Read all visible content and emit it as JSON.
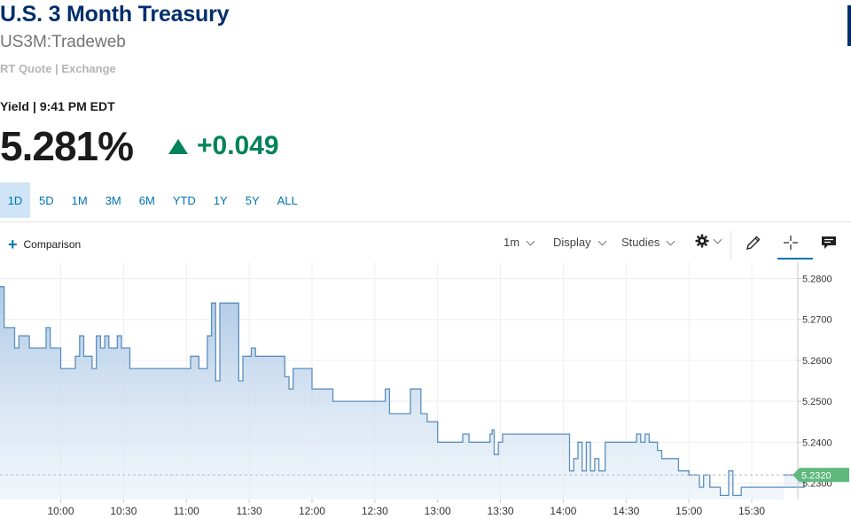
{
  "header": {
    "title": "U.S. 3 Month Treasury",
    "symbol": "US3M:Tradeweb",
    "quote_source": "RT Quote | Exchange"
  },
  "quote": {
    "yield_label": "Yield",
    "separator": "|",
    "time": "9:41 PM EDT",
    "price": "5.281%",
    "change": "+0.049",
    "direction": "up",
    "change_color": "#00825a"
  },
  "ranges": [
    {
      "label": "1D",
      "active": true
    },
    {
      "label": "5D",
      "active": false
    },
    {
      "label": "1M",
      "active": false
    },
    {
      "label": "3M",
      "active": false
    },
    {
      "label": "6M",
      "active": false
    },
    {
      "label": "YTD",
      "active": false
    },
    {
      "label": "1Y",
      "active": false
    },
    {
      "label": "5Y",
      "active": false
    },
    {
      "label": "ALL",
      "active": false
    }
  ],
  "toolbar": {
    "comparison_label": "Comparison",
    "interval_label": "1m",
    "display_label": "Display",
    "studies_label": "Studies",
    "icons": [
      "gear-icon",
      "pencil-icon",
      "crosshair-icon",
      "comment-icon"
    ]
  },
  "chart_data": {
    "type": "area",
    "accent_color": "#5b8fbf",
    "xlim": [
      "09:30",
      "16:00"
    ],
    "ylim": [
      5.226,
      5.284
    ],
    "x_ticks": [
      "10:00",
      "10:30",
      "11:00",
      "11:30",
      "12:00",
      "12:30",
      "13:00",
      "13:30",
      "14:00",
      "14:30",
      "15:00",
      "15:30"
    ],
    "y_ticks": [
      "5.2800",
      "5.2700",
      "5.2600",
      "5.2500",
      "5.2400",
      "5.2300"
    ],
    "last_value_label": "5.2320",
    "last_value": 5.232,
    "grid": true,
    "series": [
      {
        "x": [
          "09:30",
          "09:33",
          "09:35",
          "09:38",
          "09:40",
          "09:43",
          "09:45",
          "09:48",
          "09:50",
          "09:53",
          "09:55",
          "09:58",
          "10:00",
          "10:05",
          "10:07",
          "10:09",
          "10:11",
          "10:13",
          "10:15",
          "10:17",
          "10:19",
          "10:21",
          "10:23",
          "10:25",
          "10:27",
          "10:29",
          "10:31",
          "10:33",
          "10:36",
          "10:40",
          "10:45",
          "10:50",
          "10:55",
          "11:00",
          "11:02",
          "11:04",
          "11:06",
          "11:08",
          "11:10",
          "11:12",
          "11:14",
          "11:16",
          "11:20",
          "11:25",
          "11:27",
          "11:29",
          "11:31",
          "11:33",
          "11:35",
          "11:40",
          "11:45",
          "11:47",
          "11:49",
          "11:51",
          "11:55",
          "12:00",
          "12:03",
          "12:05",
          "12:10",
          "12:20",
          "12:30",
          "12:35",
          "12:37",
          "12:40",
          "12:45",
          "12:47",
          "12:50",
          "12:52",
          "12:55",
          "13:00",
          "13:05",
          "13:10",
          "13:12",
          "13:15",
          "13:20",
          "13:25",
          "13:26",
          "13:27",
          "13:29",
          "13:31",
          "13:35",
          "13:40",
          "13:45",
          "13:50",
          "13:55",
          "14:00",
          "14:03",
          "14:05",
          "14:07",
          "14:09",
          "14:11",
          "14:13",
          "14:15",
          "14:17",
          "14:20",
          "14:25",
          "14:30",
          "14:35",
          "14:37",
          "14:39",
          "14:41",
          "14:43",
          "14:45",
          "14:47",
          "14:50",
          "14:55",
          "15:00",
          "15:05",
          "15:07",
          "15:10",
          "15:15",
          "15:17",
          "15:19",
          "15:21",
          "15:25",
          "15:30",
          "15:40",
          "15:50",
          "15:55"
        ],
        "y": [
          5.278,
          5.268,
          5.268,
          5.263,
          5.266,
          5.266,
          5.263,
          5.263,
          5.263,
          5.268,
          5.263,
          5.263,
          5.258,
          5.258,
          5.261,
          5.266,
          5.261,
          5.261,
          5.258,
          5.266,
          5.263,
          5.266,
          5.263,
          5.263,
          5.266,
          5.263,
          5.263,
          5.258,
          5.258,
          5.258,
          5.258,
          5.258,
          5.258,
          5.258,
          5.261,
          5.261,
          5.258,
          5.258,
          5.266,
          5.274,
          5.255,
          5.274,
          5.274,
          5.255,
          5.261,
          5.261,
          5.263,
          5.261,
          5.261,
          5.261,
          5.261,
          5.256,
          5.253,
          5.258,
          5.258,
          5.253,
          5.253,
          5.253,
          5.25,
          5.25,
          5.25,
          5.253,
          5.247,
          5.247,
          5.247,
          5.253,
          5.253,
          5.247,
          5.245,
          5.24,
          5.24,
          5.24,
          5.242,
          5.24,
          5.24,
          5.242,
          5.243,
          5.237,
          5.24,
          5.242,
          5.242,
          5.242,
          5.242,
          5.242,
          5.242,
          5.242,
          5.233,
          5.236,
          5.24,
          5.233,
          5.24,
          5.233,
          5.236,
          5.233,
          5.24,
          5.24,
          5.24,
          5.242,
          5.24,
          5.242,
          5.24,
          5.24,
          5.238,
          5.236,
          5.236,
          5.233,
          5.232,
          5.229,
          5.232,
          5.229,
          5.227,
          5.227,
          5.233,
          5.227,
          5.229,
          5.229,
          5.229,
          5.229,
          5.232
        ]
      }
    ]
  }
}
